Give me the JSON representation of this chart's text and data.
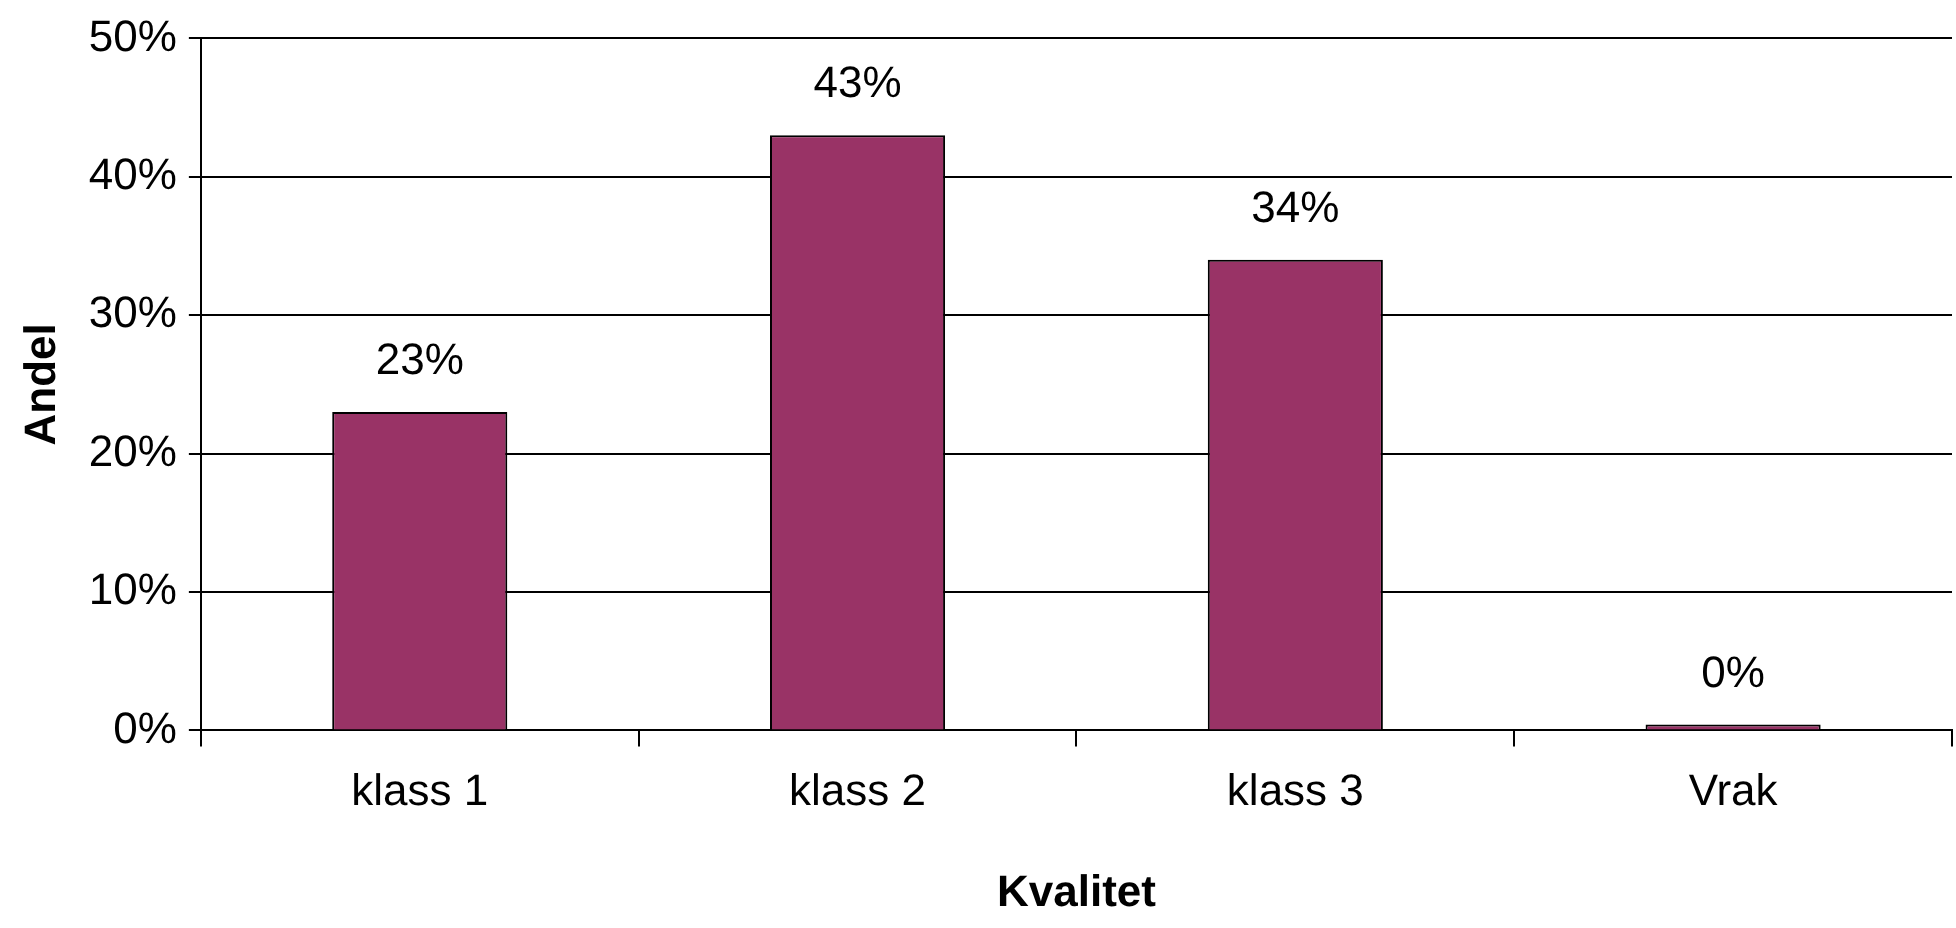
{
  "chart_data": {
    "type": "bar",
    "xlabel": "Kvalitet",
    "ylabel": "Andel",
    "categories": [
      "klass 1",
      "klass 2",
      "klass 3",
      "Vrak"
    ],
    "values": [
      23,
      43,
      34,
      0
    ],
    "color": "#993366",
    "ylim": [
      0,
      50
    ],
    "yticks": [
      {
        "value": 0,
        "label": "0%"
      },
      {
        "value": 10,
        "label": "10%"
      },
      {
        "value": 20,
        "label": "20%"
      },
      {
        "value": 30,
        "label": "30%"
      },
      {
        "value": 40,
        "label": "40%"
      },
      {
        "value": 50,
        "label": "50%"
      }
    ],
    "value_labels": [
      "23%",
      "43%",
      "34%",
      "0%"
    ],
    "grid": "y",
    "legend": false
  }
}
